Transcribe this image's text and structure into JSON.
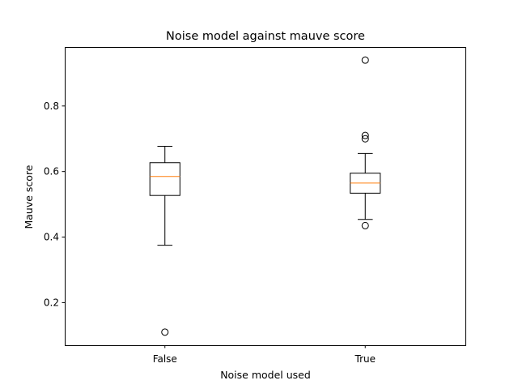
{
  "chart_data": {
    "type": "box",
    "title": "Noise model against mauve score",
    "xlabel": "Noise model used",
    "ylabel": "Mauve score",
    "categories": [
      "False",
      "True"
    ],
    "ylim": [
      0.07,
      0.98
    ],
    "yticks": [
      {
        "value": 0.2,
        "label": "0.2"
      },
      {
        "value": 0.4,
        "label": "0.4"
      },
      {
        "value": 0.6,
        "label": "0.6"
      },
      {
        "value": 0.8,
        "label": "0.8"
      }
    ],
    "grid": false,
    "boxes": [
      {
        "category": "False",
        "whisker_low": 0.375,
        "q1": 0.527,
        "median": 0.585,
        "q3": 0.627,
        "whisker_high": 0.677,
        "outliers": [
          0.11
        ]
      },
      {
        "category": "True",
        "whisker_low": 0.454,
        "q1": 0.534,
        "median": 0.565,
        "q3": 0.595,
        "whisker_high": 0.655,
        "outliers": [
          0.435,
          0.7,
          0.71,
          0.94
        ]
      }
    ],
    "colors": {
      "box": "#000000",
      "median": "#ff7f0e",
      "background": "#ffffff"
    }
  }
}
